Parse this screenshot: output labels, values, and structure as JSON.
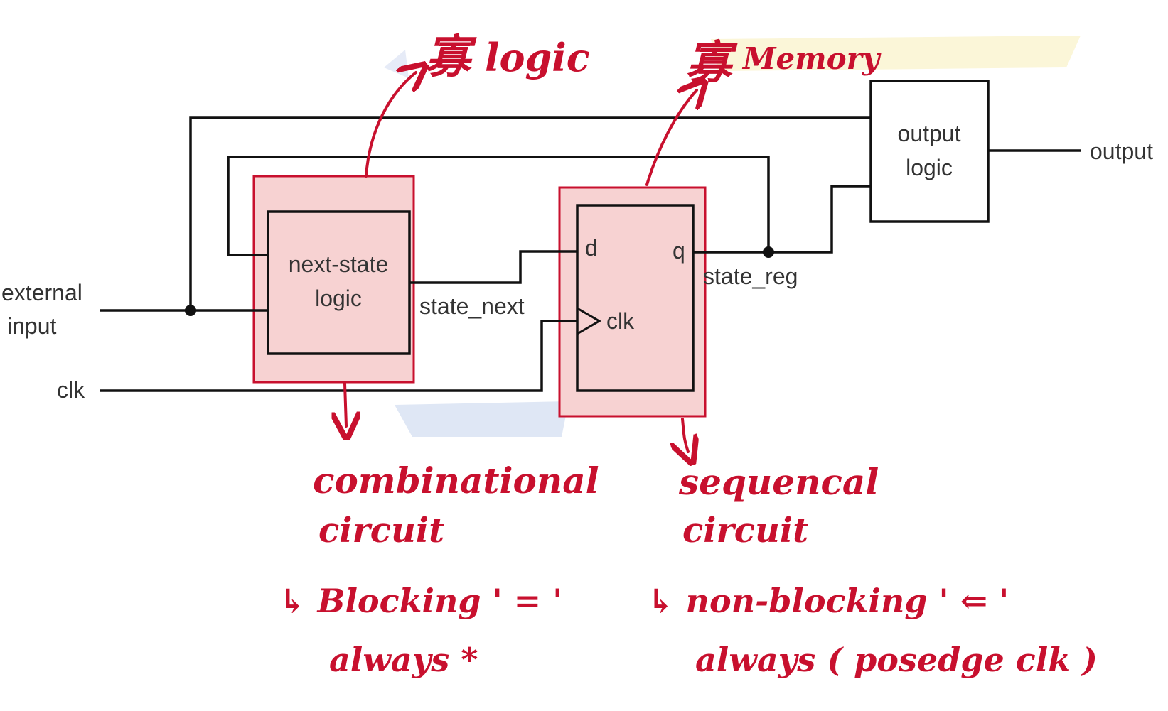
{
  "colors": {
    "wire": "#111111",
    "annotation": "#c8102e",
    "highlight_fill": "#f7d2d2",
    "label_text": "#333333"
  },
  "diagram": {
    "inputs": {
      "external_input_line1": "external",
      "external_input_line2": "input",
      "clk": "clk"
    },
    "output_label": "output",
    "blocks": {
      "next_state_line1": "next-state",
      "next_state_line2": "logic",
      "register_d": "d",
      "register_q": "q",
      "register_clk": "clk",
      "output_logic_line1": "output",
      "output_logic_line2": "logic"
    },
    "signals": {
      "state_next": "state_next",
      "state_reg": "state_reg"
    }
  },
  "annotations": {
    "logic_note": {
      "glyph": "寡",
      "text": "logic"
    },
    "memory_note": {
      "glyph": "寡",
      "text": "Memory"
    },
    "combinational": {
      "line1": "combinational",
      "line2": "circuit",
      "assign_line": "↳ Blocking ' = '",
      "always_line": "always *"
    },
    "sequential": {
      "line1": "sequencal",
      "line2": "circuit",
      "assign_line": "↳ non-blocking ' ⇐ '",
      "always_line": "always ( posedge clk )"
    }
  }
}
